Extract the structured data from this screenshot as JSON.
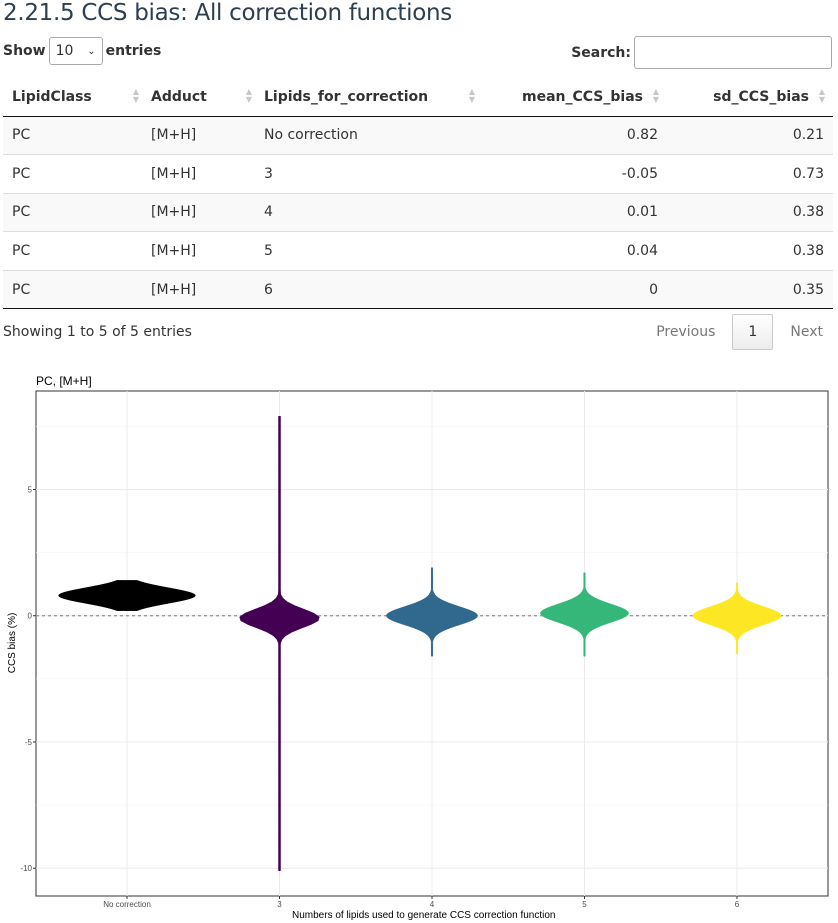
{
  "page_title": "2.21.5 CCS bias: All correction functions",
  "length": {
    "show_label": "Show",
    "value": "10",
    "entries_label": "entries"
  },
  "search": {
    "label": "Search:",
    "value": "",
    "placeholder": ""
  },
  "table": {
    "columns": [
      "LipidClass",
      "Adduct",
      "Lipids_for_correction",
      "mean_CCS_bias",
      "sd_CCS_bias"
    ],
    "rows": [
      [
        "PC",
        "[M+H]",
        "No correction",
        "0.82",
        "0.21"
      ],
      [
        "PC",
        "[M+H]",
        "3",
        "-0.05",
        "0.73"
      ],
      [
        "PC",
        "[M+H]",
        "4",
        "0.01",
        "0.38"
      ],
      [
        "PC",
        "[M+H]",
        "5",
        "0.04",
        "0.38"
      ],
      [
        "PC",
        "[M+H]",
        "6",
        "0",
        "0.35"
      ]
    ]
  },
  "info": "Showing 1 to 5 of 5 entries",
  "pager": {
    "previous": "Previous",
    "current": "1",
    "next": "Next"
  },
  "chart_data": {
    "type": "violin",
    "title": "PC, [M+H]",
    "xlabel": "Numbers of lipids used to generate CCS correction function",
    "ylabel": "CCS bias (%)",
    "categories": [
      "No correction",
      "3",
      "4",
      "5",
      "6"
    ],
    "yticks": [
      5,
      0,
      -5,
      -10
    ],
    "ytick_labels": [
      "5",
      "0",
      "-5",
      "-10"
    ],
    "ylim": [
      -11.1,
      8.9
    ],
    "reference_line": 0,
    "grid": true,
    "colors": [
      "#000000",
      "#440154",
      "#31688e",
      "#35b779",
      "#fde725"
    ],
    "violins": [
      {
        "category": "No correction",
        "min": 0.2,
        "max": 1.4,
        "peak": 0.8,
        "max_width": 0.9
      },
      {
        "category": "3",
        "min": -10.1,
        "max": 7.9,
        "peak": -0.1,
        "max_width": 0.53
      },
      {
        "category": "4",
        "min": -1.6,
        "max": 1.9,
        "peak": 0.0,
        "max_width": 0.6
      },
      {
        "category": "5",
        "min": -1.6,
        "max": 1.7,
        "peak": 0.1,
        "max_width": 0.58
      },
      {
        "category": "6",
        "min": -1.5,
        "max": 1.3,
        "peak": 0.0,
        "max_width": 0.58
      }
    ]
  }
}
